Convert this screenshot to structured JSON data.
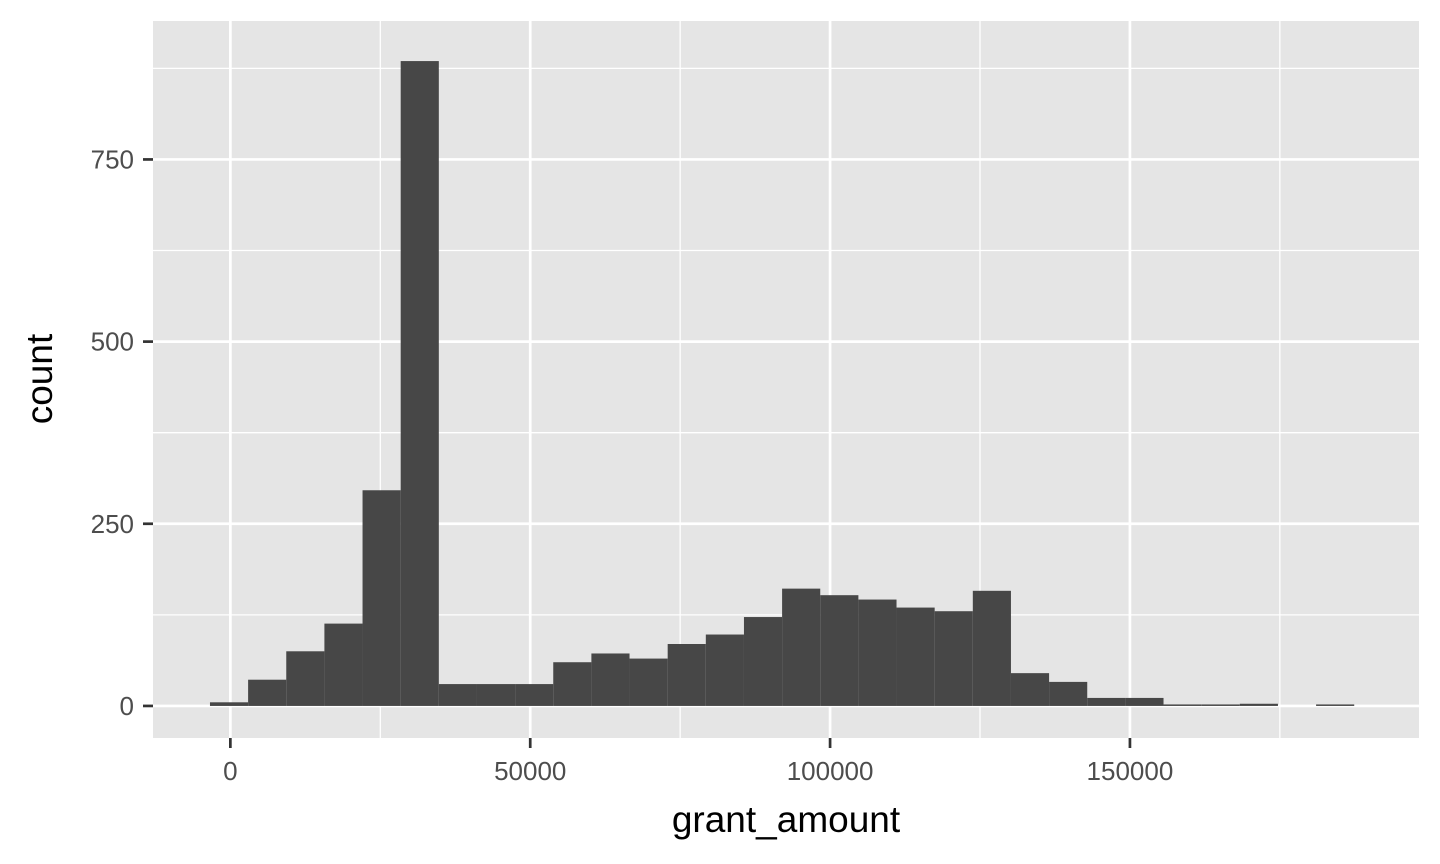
{
  "chart_data": {
    "type": "bar",
    "subtype": "histogram",
    "xlabel": "grant_amount",
    "ylabel": "count",
    "xlim": [
      -12900,
      198200
    ],
    "ylim": [
      -44,
      940
    ],
    "x_ticks": [
      0,
      50000,
      100000,
      150000
    ],
    "x_tick_labels": [
      "0",
      "50000",
      "100000",
      "150000"
    ],
    "y_ticks": [
      0,
      250,
      500,
      750
    ],
    "y_tick_labels": [
      "0",
      "250",
      "500",
      "750"
    ],
    "grid": true,
    "legend": "none",
    "bin_width": 6360,
    "bin_start": -3400,
    "counts": [
      5,
      36,
      75,
      113,
      296,
      885,
      30,
      30,
      30,
      60,
      72,
      65,
      85,
      98,
      122,
      161,
      152,
      146,
      135,
      130,
      158,
      45,
      33,
      11,
      11,
      1,
      1,
      3,
      0,
      1
    ],
    "colors": {
      "bar": "#474747",
      "panel": "#e5e5e5",
      "grid": "#ffffff"
    }
  }
}
